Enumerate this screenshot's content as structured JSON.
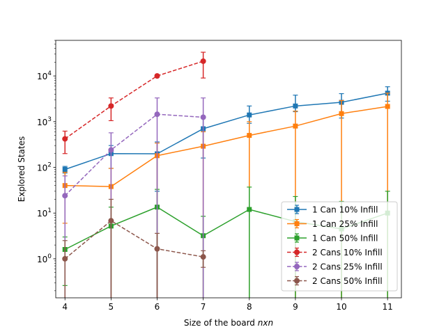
{
  "chart_data": {
    "type": "line",
    "title": "",
    "xlabel": "Size of the board",
    "xlabel_math": "nxn",
    "ylabel": "Explored States",
    "yscale": "log",
    "xlim": [
      3.8,
      11.3
    ],
    "ylim": [
      0.14,
      60000
    ],
    "x_ticks": [
      4,
      5,
      6,
      7,
      8,
      9,
      10,
      11
    ],
    "y_ticks": [
      {
        "value": 1,
        "base": "10",
        "exp": "0"
      },
      {
        "value": 10,
        "base": "10",
        "exp": "1"
      },
      {
        "value": 100,
        "base": "10",
        "exp": "2"
      },
      {
        "value": 1000,
        "base": "10",
        "exp": "3"
      },
      {
        "value": 10000,
        "base": "10",
        "exp": "4"
      }
    ],
    "legend_position": "lower-right",
    "series": [
      {
        "name": "1 Can 10% Infill",
        "color": "#1f77b4",
        "marker": "square",
        "dashed": false,
        "x": [
          4,
          5,
          6,
          7,
          8,
          9,
          10,
          11
        ],
        "y": [
          90,
          200,
          198,
          700,
          1400,
          2200,
          2650,
          4200
        ],
        "err_low": [
          75,
          95,
          30,
          160,
          920,
          1650,
          1200,
          2800
        ],
        "err_high": [
          105,
          300,
          360,
          1250,
          2200,
          3800,
          4100,
          5800
        ]
      },
      {
        "name": "1 Can 25% Infill",
        "color": "#ff7f0e",
        "marker": "square",
        "dashed": false,
        "x": [
          4,
          5,
          6,
          7,
          8,
          9,
          10,
          11
        ],
        "y": [
          40,
          38,
          180,
          290,
          500,
          800,
          1500,
          2150
        ],
        "err_low": [
          6,
          0.1,
          0.1,
          0.1,
          0.1,
          0.1,
          0.1,
          0.1
        ],
        "err_high": [
          78,
          95,
          340,
          600,
          1000,
          1700,
          2900,
          4200
        ]
      },
      {
        "name": "1 Can 50% Infill",
        "color": "#2ca02c",
        "marker": "square",
        "dashed": false,
        "x": [
          4,
          5,
          6,
          7,
          8,
          9,
          10,
          11
        ],
        "y": [
          1.6,
          5.2,
          13.5,
          3.2,
          12,
          6.5,
          4.5,
          10
        ],
        "err_low": [
          0.26,
          0.1,
          0.1,
          0.1,
          0.1,
          0.1,
          0.1,
          0.1
        ],
        "err_high": [
          3,
          13.5,
          33,
          8.5,
          37,
          23,
          18,
          30
        ]
      },
      {
        "name": "2 Cans 10% Infill",
        "color": "#d62728",
        "marker": "circle",
        "dashed": true,
        "x": [
          4,
          5,
          6,
          7
        ],
        "y": [
          420,
          2200,
          10000,
          21000
        ],
        "err_low": [
          200,
          1050,
          9400,
          9000
        ],
        "err_high": [
          620,
          3300,
          10600,
          33000
        ]
      },
      {
        "name": "2 Cans 25% Infill",
        "color": "#9467bd",
        "marker": "circle",
        "dashed": true,
        "x": [
          4,
          5,
          6,
          7
        ],
        "y": [
          24,
          240,
          1450,
          1250
        ],
        "err_low": [
          0.1,
          0.1,
          0.1,
          0.1
        ],
        "err_high": [
          65,
          570,
          3300,
          3300
        ]
      },
      {
        "name": "2 Cans 50% Infill",
        "color": "#8c564b",
        "marker": "circle",
        "dashed": true,
        "x": [
          4,
          5,
          6,
          7
        ],
        "y": [
          1.0,
          6.8,
          1.65,
          1.1
        ],
        "err_low": [
          0.1,
          0.1,
          0.1,
          0.65
        ],
        "err_high": [
          2.5,
          20,
          3.6,
          1.5
        ]
      }
    ]
  }
}
